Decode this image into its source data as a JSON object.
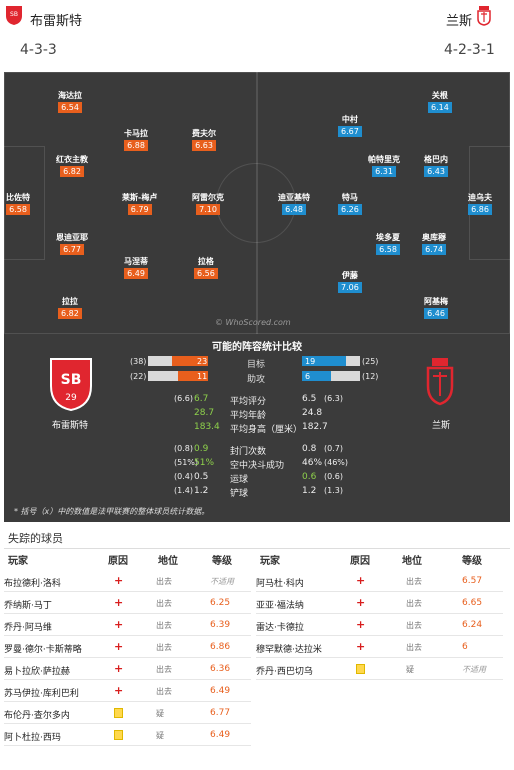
{
  "header": {
    "home_name": "布雷斯特",
    "home_formation": "4-3-3",
    "away_name": "兰斯",
    "away_formation": "4-2-3-1"
  },
  "pitch": {
    "watermark": "© WhoScored.com",
    "home_players": [
      {
        "name": "比佐特",
        "rating": "6.58"
      },
      {
        "name": "海达拉",
        "rating": "6.54"
      },
      {
        "name": "红衣主教",
        "rating": "6.82"
      },
      {
        "name": "恩迪亚耶",
        "rating": "6.77"
      },
      {
        "name": "拉拉",
        "rating": "6.82"
      },
      {
        "name": "卡马拉",
        "rating": "6.88"
      },
      {
        "name": "莱斯-梅卢",
        "rating": "6.79"
      },
      {
        "name": "马涅蒂",
        "rating": "6.49"
      },
      {
        "name": "费夫尔",
        "rating": "6.63"
      },
      {
        "name": "阿雷尔克",
        "rating": "7.10"
      },
      {
        "name": "拉格",
        "rating": "6.56"
      }
    ],
    "away_players": [
      {
        "name": "迪乌夫",
        "rating": "6.86"
      },
      {
        "name": "关根",
        "rating": "6.14"
      },
      {
        "name": "格巴内",
        "rating": "6.43"
      },
      {
        "name": "奥库穆",
        "rating": "6.74"
      },
      {
        "name": "阿基梅",
        "rating": "6.46"
      },
      {
        "name": "中村",
        "rating": "6.67"
      },
      {
        "name": "帕特里克",
        "rating": "6.31"
      },
      {
        "name": "埃多夏",
        "rating": "6.58"
      },
      {
        "name": "迪亚基特",
        "rating": "6.48"
      },
      {
        "name": "特马",
        "rating": "6.26"
      },
      {
        "name": "伊藤",
        "rating": "7.06"
      }
    ]
  },
  "stats": {
    "title": "可能的阵容统计比较",
    "home_name": "布雷斯特",
    "away_name": "兰斯",
    "bars": [
      {
        "label": "目标",
        "home": "23",
        "home_avg": "(38)",
        "away": "19",
        "away_avg": "(25)",
        "home_frac": 0.6,
        "away_frac": 0.76
      },
      {
        "label": "助攻",
        "home": "11",
        "home_avg": "(22)",
        "away": "6",
        "away_avg": "(12)",
        "home_frac": 0.5,
        "away_frac": 0.5
      }
    ],
    "rows": [
      {
        "label": "平均评分",
        "home": "6.7",
        "home_avg": "(6.6)",
        "away": "6.5",
        "away_avg": "(6.3)",
        "home_green": true,
        "away_green": false
      },
      {
        "label": "平均年龄",
        "home": "28.7",
        "home_avg": "",
        "away": "24.8",
        "away_avg": "",
        "home_green": true,
        "away_green": false
      },
      {
        "label": "平均身高（厘米）",
        "home": "183.4",
        "home_avg": "",
        "away": "182.7",
        "away_avg": "",
        "home_green": true,
        "away_green": false
      },
      {
        "label": "封门次数",
        "home": "0.9",
        "home_avg": "(0.8)",
        "away": "0.8",
        "away_avg": "(0.7)",
        "home_green": true,
        "away_green": false
      },
      {
        "label": "空中决斗成功",
        "home": "51%",
        "home_avg": "(51%)",
        "away": "46%",
        "away_avg": "(46%)",
        "home_green": true,
        "away_green": false
      },
      {
        "label": "运球",
        "home": "0.5",
        "home_avg": "(0.4)",
        "away": "0.6",
        "away_avg": "(0.6)",
        "home_green": false,
        "away_green": true
      },
      {
        "label": "铲球",
        "home": "1.2",
        "home_avg": "(1.4)",
        "away": "1.2",
        "away_avg": "(1.3)",
        "home_green": false,
        "away_green": false
      }
    ],
    "footnote": "* 括号（x）中的数值是法甲联赛的整体球员统计数据。"
  },
  "missing": {
    "title": "失踪的球员",
    "headers": {
      "player": "玩家",
      "reason": "原因",
      "status": "地位",
      "rating": "等级"
    },
    "home": [
      {
        "name": "布拉德利·洛科",
        "icon": "red",
        "status": "出去",
        "rating": "不适用",
        "na": true
      },
      {
        "name": "乔纳斯·马丁",
        "icon": "red",
        "status": "出去",
        "rating": "6.25",
        "na": false
      },
      {
        "name": "乔丹·阿马维",
        "icon": "red",
        "status": "出去",
        "rating": "6.39",
        "na": false
      },
      {
        "name": "罗曼·德尔·卡斯蒂略",
        "icon": "red",
        "status": "出去",
        "rating": "6.86",
        "na": false
      },
      {
        "name": "易卜拉欣·萨拉赫",
        "icon": "red",
        "status": "出去",
        "rating": "6.36",
        "na": false
      },
      {
        "name": "苏马伊拉·库利巴利",
        "icon": "red",
        "status": "出去",
        "rating": "6.49",
        "na": false
      },
      {
        "name": "布伦丹·查尔多内",
        "icon": "yellow",
        "status": "疑",
        "rating": "6.77",
        "na": false
      },
      {
        "name": "阿卜杜拉·西玛",
        "icon": "yellow",
        "status": "疑",
        "rating": "6.49",
        "na": false
      }
    ],
    "away": [
      {
        "name": "阿马杜·科内",
        "icon": "red",
        "status": "出去",
        "rating": "6.57",
        "na": false
      },
      {
        "name": "亚亚·福法纳",
        "icon": "red",
        "status": "出去",
        "rating": "6.65",
        "na": false
      },
      {
        "name": "雷达·卡德拉",
        "icon": "red",
        "status": "出去",
        "rating": "6.24",
        "na": false
      },
      {
        "name": "穆罕默德·达拉米",
        "icon": "red",
        "status": "出去",
        "rating": "6",
        "na": false
      },
      {
        "name": "乔丹·西巴切乌",
        "icon": "yellow",
        "status": "疑",
        "rating": "不适用",
        "na": true
      }
    ]
  }
}
